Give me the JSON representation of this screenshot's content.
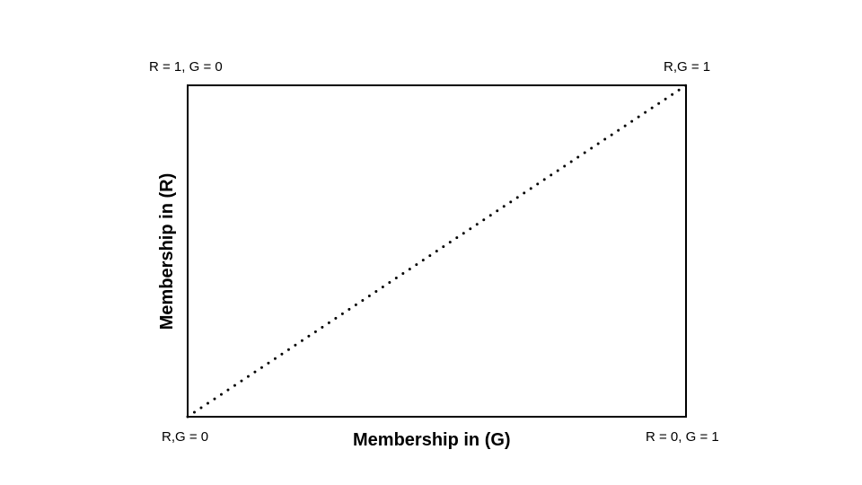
{
  "diagram": {
    "corners": {
      "top_left": "R = 1, G = 0",
      "top_right": "R,G = 1",
      "bottom_left": "R,G = 0",
      "bottom_right": "R = 0, G = 1"
    },
    "x_axis_label": "Membership in (G)",
    "y_axis_label": "Membership in (R)",
    "diagonal_style": "dotted",
    "colors": {
      "stroke": "#000000",
      "background": "#ffffff"
    }
  }
}
